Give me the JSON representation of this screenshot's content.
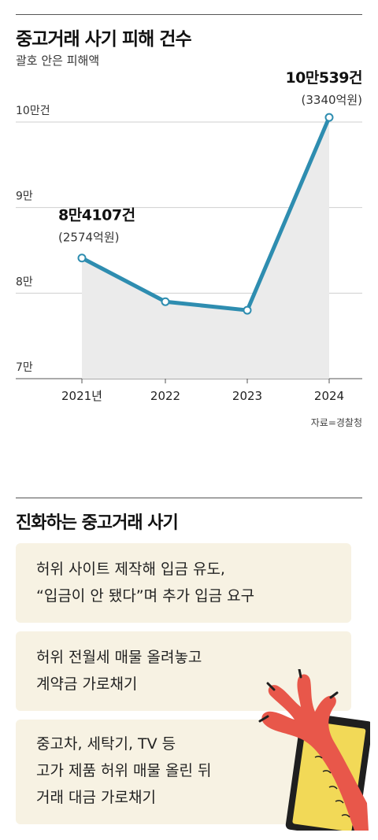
{
  "title": "중고거래 사기 피해 건수",
  "subtitle": "괄호 안은 피해액",
  "source": "자료=경찰청",
  "chart_data": {
    "type": "area",
    "title": "중고거래 사기 피해 건수",
    "subtitle": "괄호 안은 피해액",
    "categories": [
      "2021년",
      "2022",
      "2023",
      "2024"
    ],
    "series": [
      {
        "values": [
          84107,
          79000,
          78000,
          100539
        ]
      }
    ],
    "ylim": [
      70000,
      103500
    ],
    "yticks": [
      {
        "value": 70000,
        "label": "7만"
      },
      {
        "value": 80000,
        "label": "8만"
      },
      {
        "value": 90000,
        "label": "9만"
      },
      {
        "value": 100000,
        "label": "10만건"
      }
    ],
    "annotations": [
      {
        "index": 0,
        "count": "8만4107건",
        "amount": "(2574억원)"
      },
      {
        "index": 3,
        "count": "10만539건",
        "amount": "(3340억원)"
      }
    ],
    "grid": true,
    "line_color": "#2e8db0",
    "area_color": "#ebebeb"
  },
  "section2": {
    "title": "진화하는 중고거래 사기",
    "items": [
      {
        "lines": [
          "허위 사이트 제작해 입금 유도,",
          "“입금이 안 됐다”며 추가 입금 요구"
        ]
      },
      {
        "lines": [
          "허위 전월세 매물 올려놓고",
          "계약금 가로채기"
        ]
      },
      {
        "lines": [
          "중고차, 세탁기, TV 등",
          "고가 제품 허위 매물 올린 뒤",
          "거래 대금 가로채기"
        ]
      }
    ]
  },
  "colors": {
    "box_bg": "#f7f2e3",
    "hand": "#e8574a",
    "phone_screen": "#f2d957"
  }
}
